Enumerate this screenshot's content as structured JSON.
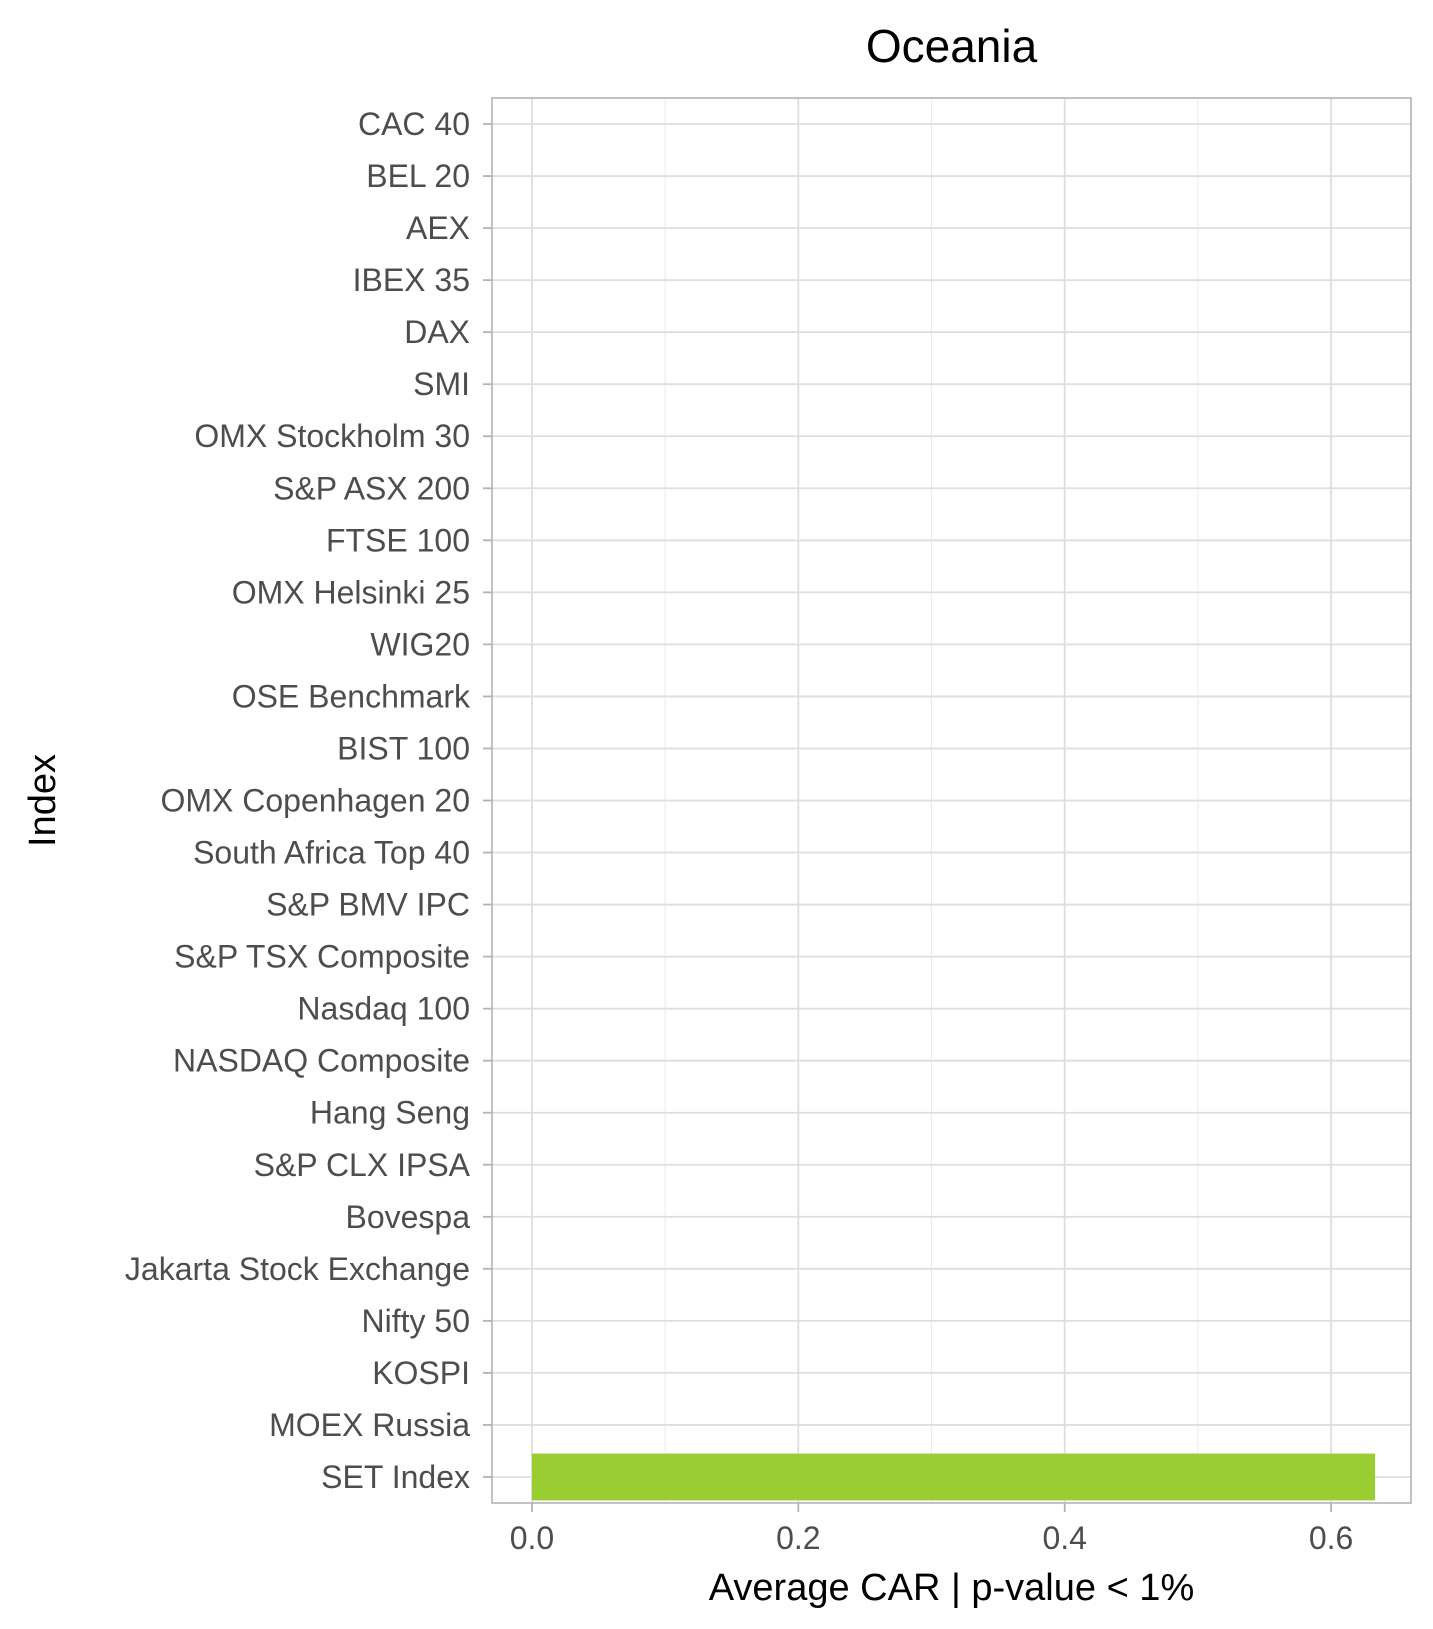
{
  "chart_data": {
    "type": "bar",
    "orientation": "horizontal",
    "title": "Oceania",
    "xlabel": "Average CAR | p-value < 1%",
    "ylabel": "Index",
    "xlim": [
      -0.03,
      0.66
    ],
    "xticks": [
      0.0,
      0.2,
      0.4,
      0.6
    ],
    "xtick_labels": [
      "0.0",
      "0.2",
      "0.4",
      "0.6"
    ],
    "grid": true,
    "legend": "none",
    "bar_color": "#9acd32",
    "categories": [
      "CAC 40",
      "BEL 20",
      "AEX",
      "IBEX 35",
      "DAX",
      "SMI",
      "OMX Stockholm 30",
      "S&P ASX 200",
      "FTSE 100",
      "OMX Helsinki 25",
      "WIG20",
      "OSE Benchmark",
      "BIST 100",
      "OMX Copenhagen 20",
      "South Africa Top 40",
      "S&P BMV IPC",
      "S&P TSX Composite",
      "Nasdaq 100",
      "NASDAQ Composite",
      "Hang Seng",
      "S&P CLX IPSA",
      "Bovespa",
      "Jakarta Stock Exchange",
      "Nifty 50",
      "KOSPI",
      "MOEX Russia",
      "SET Index"
    ],
    "values": [
      null,
      null,
      null,
      null,
      null,
      null,
      null,
      null,
      null,
      null,
      null,
      null,
      null,
      null,
      null,
      null,
      null,
      null,
      null,
      null,
      null,
      null,
      null,
      null,
      null,
      null,
      0.633
    ]
  }
}
